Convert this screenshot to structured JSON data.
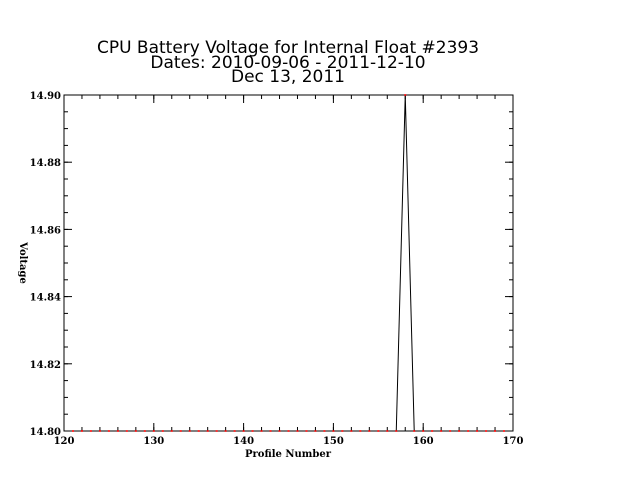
{
  "chart_data": {
    "type": "scatter",
    "title_lines": [
      "CPU Battery Voltage for Internal Float #2393",
      "Dates:  2010-09-06 -  2011-12-10",
      "Dec 13, 2011"
    ],
    "xlabel": "Profile Number",
    "ylabel": "Voltage",
    "xlim": [
      120,
      170
    ],
    "ylim": [
      14.8,
      14.9
    ],
    "x_ticks": [
      120,
      130,
      140,
      150,
      160,
      170
    ],
    "x_tick_labels": [
      "120",
      "130",
      "140",
      "150",
      "160",
      "170"
    ],
    "y_ticks": [
      14.8,
      14.82,
      14.84,
      14.86,
      14.88,
      14.9
    ],
    "y_tick_labels": [
      "14.80",
      "14.82",
      "14.84",
      "14.86",
      "14.88",
      "14.90"
    ],
    "x_minor_step": 2,
    "y_minor_step": 0.005,
    "grid": false,
    "series": [
      {
        "x": [
          121,
          122,
          123,
          124,
          125,
          126,
          127,
          128,
          129,
          130,
          131,
          132,
          133,
          134,
          135,
          136,
          137,
          138,
          139,
          140,
          141,
          142,
          143,
          144,
          145,
          146,
          147,
          148,
          149,
          150,
          151,
          152,
          153,
          154,
          155,
          156,
          157,
          158,
          159,
          160,
          161,
          162,
          163,
          164,
          165,
          166,
          167,
          168,
          169
        ],
        "y": [
          14.8,
          14.8,
          14.8,
          14.8,
          14.8,
          14.8,
          14.8,
          14.8,
          14.8,
          14.8,
          14.8,
          14.8,
          14.8,
          14.8,
          14.8,
          14.8,
          14.8,
          14.8,
          14.8,
          14.8,
          14.8,
          14.8,
          14.8,
          14.8,
          14.8,
          14.8,
          14.8,
          14.8,
          14.8,
          14.8,
          14.8,
          14.8,
          14.8,
          14.8,
          14.8,
          14.8,
          14.8,
          14.9,
          14.8,
          14.8,
          14.8,
          14.8,
          14.8,
          14.8,
          14.8,
          14.8,
          14.8,
          14.8,
          14.8
        ],
        "line_color": "#000000",
        "marker_color": "#ff0000"
      }
    ]
  }
}
